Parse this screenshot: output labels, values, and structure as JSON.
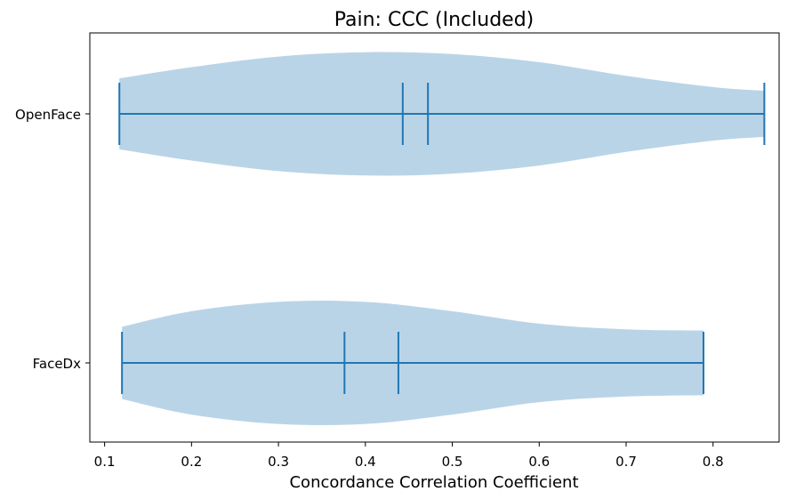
{
  "chart_data": {
    "type": "violin",
    "orientation": "horizontal",
    "title": "Pain: CCC (Included)",
    "xlabel": "Concordance Correlation Coefficient",
    "ylabel": "",
    "xlim": [
      0.083,
      0.876
    ],
    "xticks": [
      "0.1",
      "0.2",
      "0.3",
      "0.4",
      "0.5",
      "0.6",
      "0.7",
      "0.8"
    ],
    "grid": false,
    "colors": {
      "body": "#bad4e7",
      "lines": "#1f77b4"
    },
    "categories": [
      "OpenFace",
      "FaceDx"
    ],
    "series": [
      {
        "category": "OpenFace",
        "min": 0.117,
        "max": 0.859,
        "median": 0.443,
        "mean": 0.472,
        "density_x": [
          0.117,
          0.2,
          0.3,
          0.4,
          0.5,
          0.6,
          0.7,
          0.8,
          0.859
        ],
        "density_halfwidth": [
          0.57,
          0.75,
          0.92,
          0.99,
          0.96,
          0.83,
          0.61,
          0.43,
          0.37
        ]
      },
      {
        "category": "FaceDx",
        "min": 0.12,
        "max": 0.789,
        "median": 0.376,
        "mean": 0.438,
        "density_x": [
          0.12,
          0.2,
          0.3,
          0.4,
          0.5,
          0.6,
          0.7,
          0.789
        ],
        "density_halfwidth": [
          0.58,
          0.83,
          0.98,
          0.98,
          0.83,
          0.63,
          0.54,
          0.52
        ]
      }
    ]
  }
}
